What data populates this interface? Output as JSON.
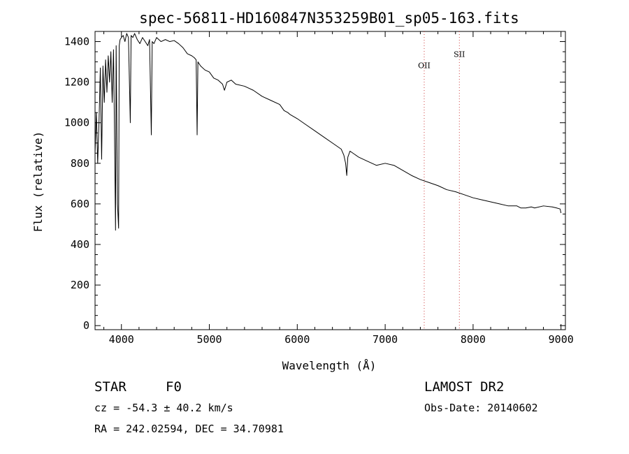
{
  "chart_data": {
    "type": "line",
    "title": "spec-56811-HD160847N353259B01_sp05-163.fits",
    "xlabel": "Wavelength (Å)",
    "ylabel": "Flux (relative)",
    "xlim": [
      3700,
      9050
    ],
    "ylim": [
      -20,
      1450
    ],
    "xticks": [
      4000,
      5000,
      6000,
      7000,
      8000,
      9000
    ],
    "yticks": [
      0,
      200,
      400,
      600,
      800,
      1000,
      1200,
      1400
    ],
    "grid": false,
    "series": [
      {
        "x": [
          3700,
          3715,
          3730,
          3745,
          3760,
          3775,
          3790,
          3805,
          3820,
          3835,
          3850,
          3865,
          3880,
          3895,
          3910,
          3920,
          3933,
          3940,
          3955,
          3968,
          3975,
          3985,
          4000,
          4020,
          4040,
          4060,
          4080,
          4101,
          4110,
          4130,
          4150,
          4180,
          4210,
          4240,
          4270,
          4300,
          4320,
          4340,
          4350,
          4370,
          4400,
          4450,
          4500,
          4550,
          4600,
          4650,
          4700,
          4750,
          4800,
          4830,
          4850,
          4861,
          4870,
          4900,
          4950,
          5000,
          5050,
          5100,
          5150,
          5172,
          5200,
          5250,
          5300,
          5400,
          5500,
          5600,
          5700,
          5800,
          5850,
          5893,
          5920,
          6000,
          6100,
          6200,
          6300,
          6400,
          6500,
          6530,
          6550,
          6563,
          6575,
          6600,
          6700,
          6800,
          6900,
          7000,
          7100,
          7200,
          7300,
          7400,
          7500,
          7600,
          7700,
          7800,
          7900,
          8000,
          8100,
          8200,
          8300,
          8400,
          8498,
          8542,
          8600,
          8662,
          8700,
          8800,
          8900,
          8950,
          8990,
          9000
        ],
        "y": [
          850,
          1050,
          800,
          1000,
          1270,
          820,
          1280,
          1100,
          1310,
          1150,
          1330,
          1200,
          1350,
          1100,
          1360,
          1000,
          470,
          1380,
          600,
          480,
          1380,
          1410,
          1420,
          1430,
          1400,
          1440,
          1420,
          1000,
          1430,
          1420,
          1440,
          1410,
          1390,
          1420,
          1400,
          1380,
          1410,
          940,
          1400,
          1390,
          1420,
          1400,
          1410,
          1400,
          1405,
          1390,
          1370,
          1340,
          1330,
          1320,
          1310,
          940,
          1300,
          1280,
          1260,
          1250,
          1220,
          1210,
          1190,
          1160,
          1200,
          1210,
          1190,
          1180,
          1160,
          1130,
          1110,
          1090,
          1060,
          1050,
          1040,
          1020,
          990,
          960,
          930,
          900,
          870,
          840,
          800,
          740,
          830,
          860,
          830,
          810,
          790,
          800,
          790,
          765,
          740,
          720,
          705,
          690,
          670,
          660,
          645,
          630,
          620,
          610,
          600,
          590,
          590,
          580,
          580,
          585,
          580,
          590,
          585,
          580,
          575,
          555
        ]
      }
    ],
    "vlines": [
      {
        "x": 7444,
        "label": "OII",
        "label_y": 1270
      },
      {
        "x": 7844,
        "label": "SII",
        "label_y": 1325
      }
    ]
  },
  "info": {
    "object_class": "STAR",
    "subclass": "F0",
    "survey": "LAMOST DR2",
    "redshift": "cz = -54.3 ± 40.2 km/s",
    "obs_date": "Obs-Date: 20140602",
    "coords": "RA = 242.02594, DEC =  34.70981"
  },
  "style": {
    "line_color": "#000000",
    "marker_line_color": "#d04040",
    "background": "#ffffff"
  }
}
